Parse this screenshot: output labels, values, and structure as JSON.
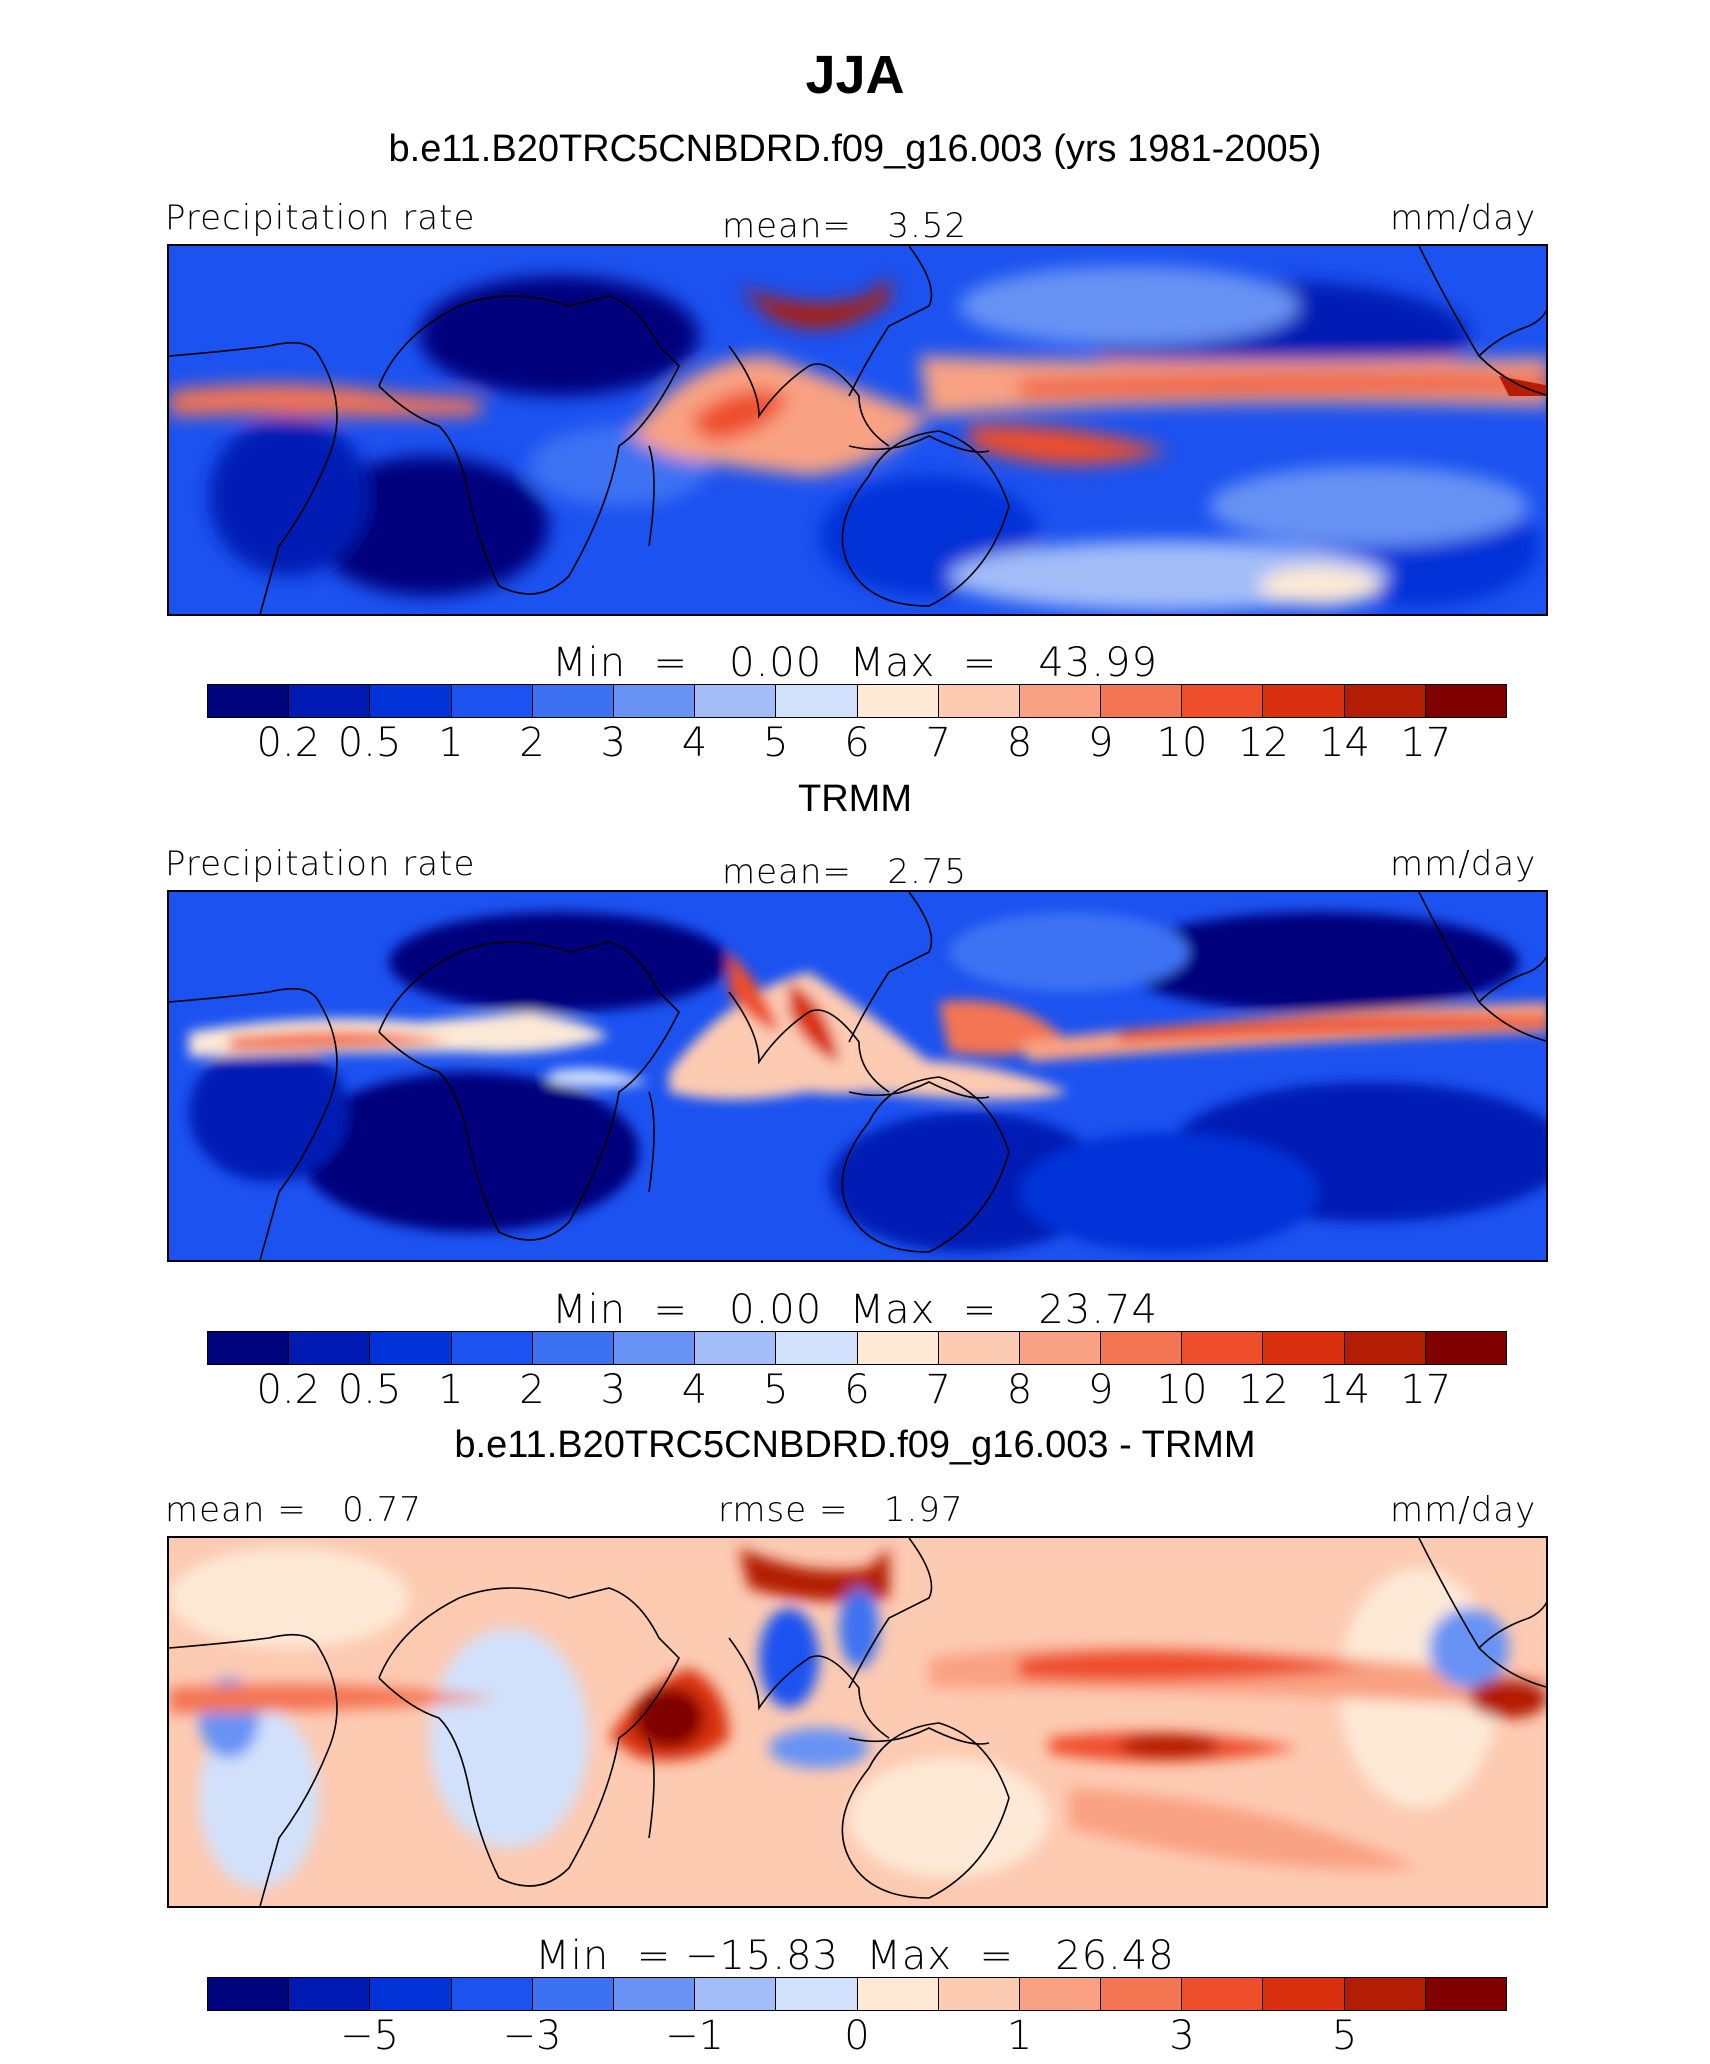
{
  "figure": {
    "season": "JJA",
    "model_title": "b.e11.B20TRC5CNBDRD.f09_g16.003 (yrs 1981-2005)",
    "obs_title": "TRMM",
    "diff_title": "b.e11.B20TRC5CNBDRD.f09_g16.003 - TRMM"
  },
  "colors": {
    "palette": [
      "#00047c",
      "#001bb4",
      "#0233d8",
      "#1b52f0",
      "#3c72f2",
      "#6893f4",
      "#a2bdf8",
      "#d2e1fb",
      "#fde9d6",
      "#fdcab2",
      "#f9a283",
      "#f47552",
      "#ee4e2b",
      "#d93010",
      "#b31d03",
      "#800000"
    ],
    "coast": "#000000"
  },
  "panels": [
    {
      "id": "model",
      "left_label": "Precipitation rate",
      "center_label": "mean=   3.52",
      "right_label": "mm/day",
      "min_label": "Min  =   ",
      "min_value": "0.00",
      "max_label": "  Max  =   ",
      "max_value": "43.99",
      "ticks": [
        "0.2",
        "0.5",
        "1",
        "2",
        "3",
        "4",
        "5",
        "6",
        "7",
        "8",
        "9",
        "10",
        "12",
        "14",
        "17"
      ]
    },
    {
      "id": "obs",
      "left_label": "Precipitation rate",
      "center_label": "mean=   2.75",
      "right_label": "mm/day",
      "min_label": "Min  =   ",
      "min_value": "0.00",
      "max_label": "  Max  =   ",
      "max_value": "23.74",
      "ticks": [
        "0.2",
        "0.5",
        "1",
        "2",
        "3",
        "4",
        "5",
        "6",
        "7",
        "8",
        "9",
        "10",
        "12",
        "14",
        "17"
      ]
    },
    {
      "id": "diff",
      "left_label": "mean =   0.77",
      "center_label": "rmse =   1.97",
      "right_label": "mm/day",
      "min_label": "Min  = ",
      "min_value": "−15.83",
      "max_label": "  Max  =   ",
      "max_value": "26.48",
      "ticks": [
        "−5",
        "−3",
        "−1",
        "0",
        "1",
        "3",
        "5"
      ]
    }
  ],
  "chart_data": [
    {
      "type": "heatmap",
      "title": "b.e11.B20TRC5CNBDRD.f09_g16.003 (yrs 1981-2005)",
      "variable": "Precipitation rate",
      "units": "mm/day",
      "mean": 3.52,
      "min": 0.0,
      "max": 43.99,
      "color_levels": [
        0.2,
        0.5,
        1,
        2,
        3,
        4,
        5,
        6,
        7,
        8,
        9,
        10,
        12,
        14,
        17
      ]
    },
    {
      "type": "heatmap",
      "title": "TRMM",
      "variable": "Precipitation rate",
      "units": "mm/day",
      "mean": 2.75,
      "min": 0.0,
      "max": 23.74,
      "color_levels": [
        0.2,
        0.5,
        1,
        2,
        3,
        4,
        5,
        6,
        7,
        8,
        9,
        10,
        12,
        14,
        17
      ]
    },
    {
      "type": "heatmap",
      "title": "b.e11.B20TRC5CNBDRD.f09_g16.003 - TRMM",
      "units": "mm/day",
      "mean": 0.77,
      "rmse": 1.97,
      "min": -15.83,
      "max": 26.48,
      "color_level_labels": [
        -5,
        -3,
        -1,
        0,
        1,
        3,
        5
      ]
    }
  ]
}
